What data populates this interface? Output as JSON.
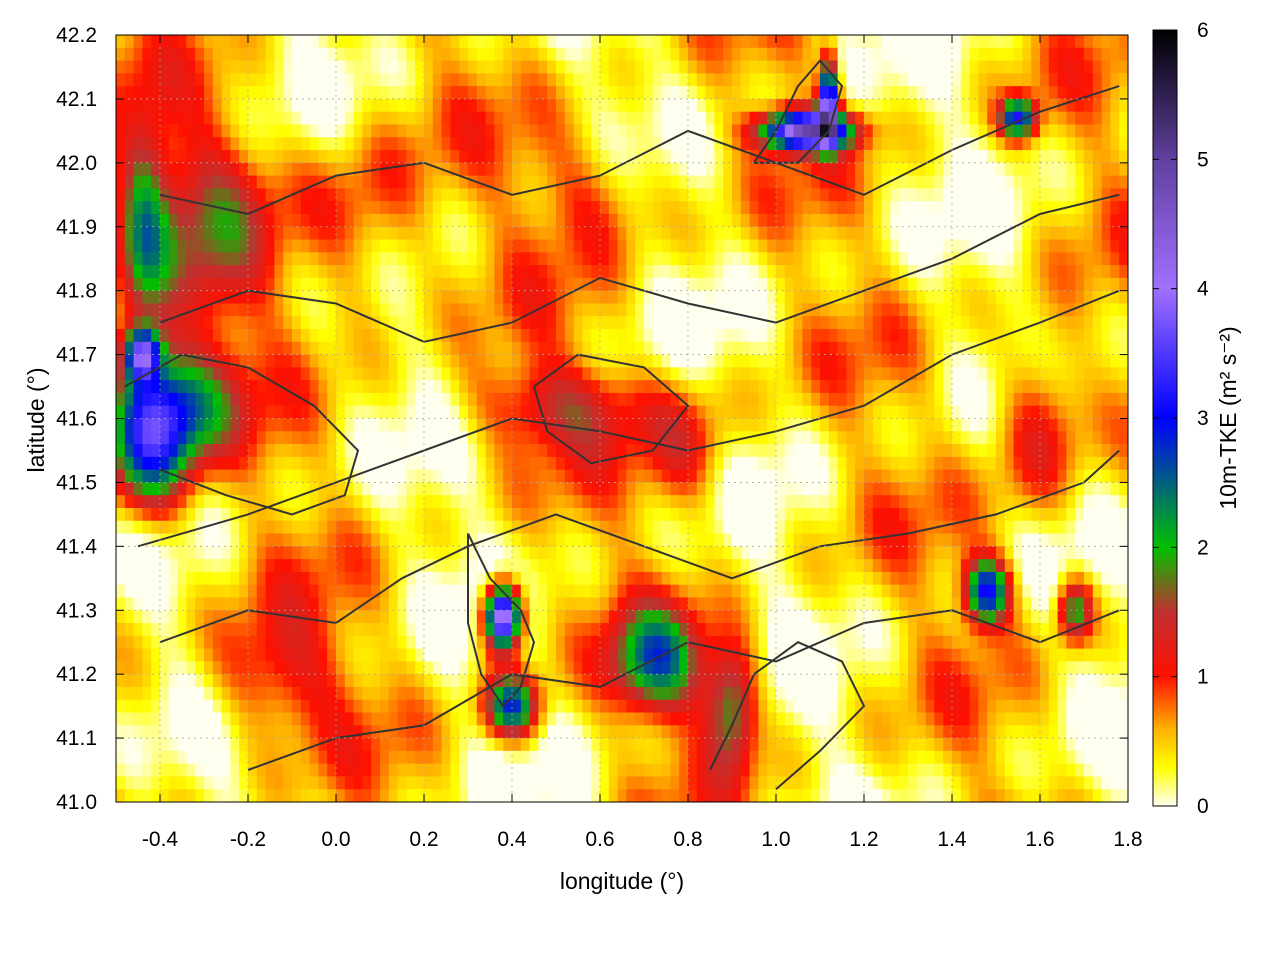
{
  "chart_data": {
    "type": "heatmap",
    "title": "",
    "xlabel": "longitude (°)",
    "ylabel": "latitude (°)",
    "colorbar_label": "10m-TKE (m² s⁻²)",
    "xlim": [
      -0.5,
      1.8
    ],
    "ylim": [
      41.0,
      42.2
    ],
    "zlim": [
      0,
      6
    ],
    "xticks": [
      "-0.4",
      "-0.2",
      "0.0",
      "0.2",
      "0.4",
      "0.6",
      "0.8",
      "1.0",
      "1.2",
      "1.4",
      "1.6",
      "1.8"
    ],
    "yticks": [
      "41.0",
      "41.1",
      "41.2",
      "41.3",
      "41.4",
      "41.5",
      "41.6",
      "41.7",
      "41.8",
      "41.9",
      "42.0",
      "42.1",
      "42.2"
    ],
    "cbticks": [
      "0",
      "1",
      "2",
      "3",
      "4",
      "5",
      "6"
    ],
    "grid": true,
    "legend": "none",
    "colormap": [
      {
        "value": 0.0,
        "color": "#fffff0"
      },
      {
        "value": 0.3,
        "color": "#ffff00"
      },
      {
        "value": 0.6,
        "color": "#ffb000"
      },
      {
        "value": 1.0,
        "color": "#ff1000"
      },
      {
        "value": 1.5,
        "color": "#c03030"
      },
      {
        "value": 2.0,
        "color": "#00c000"
      },
      {
        "value": 3.0,
        "color": "#0000ff"
      },
      {
        "value": 4.0,
        "color": "#a070ff"
      },
      {
        "value": 5.0,
        "color": "#6040a0"
      },
      {
        "value": 6.0,
        "color": "#000000"
      }
    ],
    "tke_features": [
      {
        "lon": -0.42,
        "lat": 41.58,
        "sx": 0.1,
        "sy": 0.12,
        "amp": 2.9
      },
      {
        "lon": -0.44,
        "lat": 41.9,
        "sx": 0.06,
        "sy": 0.16,
        "amp": 1.6
      },
      {
        "lon": -0.44,
        "lat": 41.7,
        "sx": 0.04,
        "sy": 0.04,
        "amp": 2.8
      },
      {
        "lon": -0.33,
        "lat": 41.62,
        "sx": 0.12,
        "sy": 0.08,
        "amp": 1.0
      },
      {
        "lon": -0.28,
        "lat": 41.9,
        "sx": 0.14,
        "sy": 0.18,
        "amp": 0.9
      },
      {
        "lon": 0.05,
        "lat": 41.9,
        "sx": 0.15,
        "sy": 0.15,
        "amp": 0.8
      },
      {
        "lon": 0.5,
        "lat": 41.62,
        "sx": 0.22,
        "sy": 0.07,
        "amp": 0.9
      },
      {
        "lon": 0.8,
        "lat": 41.55,
        "sx": 0.1,
        "sy": 0.1,
        "amp": 0.8
      },
      {
        "lon": 1.07,
        "lat": 42.05,
        "sx": 0.1,
        "sy": 0.03,
        "amp": 4.2
      },
      {
        "lon": 1.12,
        "lat": 42.1,
        "sx": 0.02,
        "sy": 0.06,
        "amp": 3.6
      },
      {
        "lon": 0.38,
        "lat": 41.29,
        "sx": 0.04,
        "sy": 0.05,
        "amp": 4.5
      },
      {
        "lon": 0.4,
        "lat": 41.15,
        "sx": 0.06,
        "sy": 0.05,
        "amp": 2.5
      },
      {
        "lon": 0.73,
        "lat": 41.22,
        "sx": 0.1,
        "sy": 0.08,
        "amp": 1.9
      },
      {
        "lon": 0.9,
        "lat": 41.15,
        "sx": 0.06,
        "sy": 0.1,
        "amp": 1.7
      },
      {
        "lon": 1.48,
        "lat": 41.33,
        "sx": 0.05,
        "sy": 0.05,
        "amp": 2.8
      },
      {
        "lon": 1.55,
        "lat": 42.07,
        "sx": 0.04,
        "sy": 0.03,
        "amp": 2.6
      },
      {
        "lon": 1.68,
        "lat": 41.3,
        "sx": 0.04,
        "sy": 0.05,
        "amp": 1.8
      },
      {
        "lon": -0.15,
        "lat": 41.2,
        "sx": 0.15,
        "sy": 0.1,
        "amp": 0.9
      },
      {
        "lon": 0.6,
        "lat": 41.95,
        "sx": 0.15,
        "sy": 0.1,
        "amp": 0.7
      },
      {
        "lon": 1.6,
        "lat": 41.6,
        "sx": 0.1,
        "sy": 0.15,
        "amp": 1.0
      }
    ],
    "contours": [
      [
        [
          -0.4,
          41.25
        ],
        [
          -0.2,
          41.3
        ],
        [
          0.0,
          41.28
        ],
        [
          0.15,
          41.35
        ],
        [
          0.3,
          41.4
        ],
        [
          0.5,
          41.45
        ],
        [
          0.7,
          41.4
        ],
        [
          0.9,
          41.35
        ],
        [
          1.1,
          41.4
        ],
        [
          1.3,
          41.42
        ],
        [
          1.5,
          41.45
        ],
        [
          1.7,
          41.5
        ],
        [
          1.78,
          41.55
        ]
      ],
      [
        [
          -0.45,
          41.4
        ],
        [
          -0.2,
          41.45
        ],
        [
          0.0,
          41.5
        ],
        [
          0.2,
          41.55
        ],
        [
          0.4,
          41.6
        ],
        [
          0.6,
          41.58
        ],
        [
          0.8,
          41.55
        ],
        [
          1.0,
          41.58
        ],
        [
          1.2,
          41.62
        ],
        [
          1.4,
          41.7
        ],
        [
          1.6,
          41.75
        ],
        [
          1.78,
          41.8
        ]
      ],
      [
        [
          -0.4,
          41.75
        ],
        [
          -0.2,
          41.8
        ],
        [
          0.0,
          41.78
        ],
        [
          0.2,
          41.72
        ],
        [
          0.4,
          41.75
        ],
        [
          0.6,
          41.82
        ],
        [
          0.8,
          41.78
        ],
        [
          1.0,
          41.75
        ],
        [
          1.2,
          41.8
        ],
        [
          1.4,
          41.85
        ],
        [
          1.6,
          41.92
        ],
        [
          1.78,
          41.95
        ]
      ],
      [
        [
          -0.4,
          41.95
        ],
        [
          -0.2,
          41.92
        ],
        [
          0.0,
          41.98
        ],
        [
          0.2,
          42.0
        ],
        [
          0.4,
          41.95
        ],
        [
          0.6,
          41.98
        ],
        [
          0.8,
          42.05
        ],
        [
          1.0,
          42.0
        ],
        [
          1.2,
          41.95
        ],
        [
          1.4,
          42.02
        ],
        [
          1.6,
          42.08
        ],
        [
          1.78,
          42.12
        ]
      ],
      [
        [
          -0.2,
          41.05
        ],
        [
          0.0,
          41.1
        ],
        [
          0.2,
          41.12
        ],
        [
          0.4,
          41.2
        ],
        [
          0.6,
          41.18
        ],
        [
          0.8,
          41.25
        ],
        [
          1.0,
          41.22
        ],
        [
          1.2,
          41.28
        ],
        [
          1.4,
          41.3
        ],
        [
          1.6,
          41.25
        ],
        [
          1.78,
          41.3
        ]
      ],
      [
        [
          0.3,
          41.42
        ],
        [
          0.35,
          41.35
        ],
        [
          0.42,
          41.3
        ],
        [
          0.45,
          41.25
        ],
        [
          0.42,
          41.18
        ],
        [
          0.38,
          41.15
        ],
        [
          0.33,
          41.2
        ],
        [
          0.3,
          41.28
        ],
        [
          0.3,
          41.42
        ]
      ],
      [
        [
          0.95,
          42.0
        ],
        [
          1.0,
          42.05
        ],
        [
          1.05,
          42.12
        ],
        [
          1.1,
          42.16
        ],
        [
          1.15,
          42.12
        ],
        [
          1.12,
          42.05
        ],
        [
          1.05,
          42.0
        ],
        [
          0.95,
          42.0
        ]
      ],
      [
        [
          0.85,
          41.05
        ],
        [
          0.9,
          41.12
        ],
        [
          0.95,
          41.2
        ],
        [
          1.05,
          41.25
        ],
        [
          1.15,
          41.22
        ],
        [
          1.2,
          41.15
        ],
        [
          1.1,
          41.08
        ],
        [
          1.0,
          41.02
        ]
      ],
      [
        [
          -0.48,
          41.65
        ],
        [
          -0.35,
          41.7
        ],
        [
          -0.2,
          41.68
        ],
        [
          -0.05,
          41.62
        ],
        [
          0.05,
          41.55
        ],
        [
          0.02,
          41.48
        ],
        [
          -0.1,
          41.45
        ],
        [
          -0.25,
          41.48
        ],
        [
          -0.4,
          41.52
        ]
      ],
      [
        [
          0.45,
          41.65
        ],
        [
          0.55,
          41.7
        ],
        [
          0.7,
          41.68
        ],
        [
          0.8,
          41.62
        ],
        [
          0.72,
          41.55
        ],
        [
          0.58,
          41.53
        ],
        [
          0.48,
          41.58
        ],
        [
          0.45,
          41.65
        ]
      ]
    ]
  }
}
